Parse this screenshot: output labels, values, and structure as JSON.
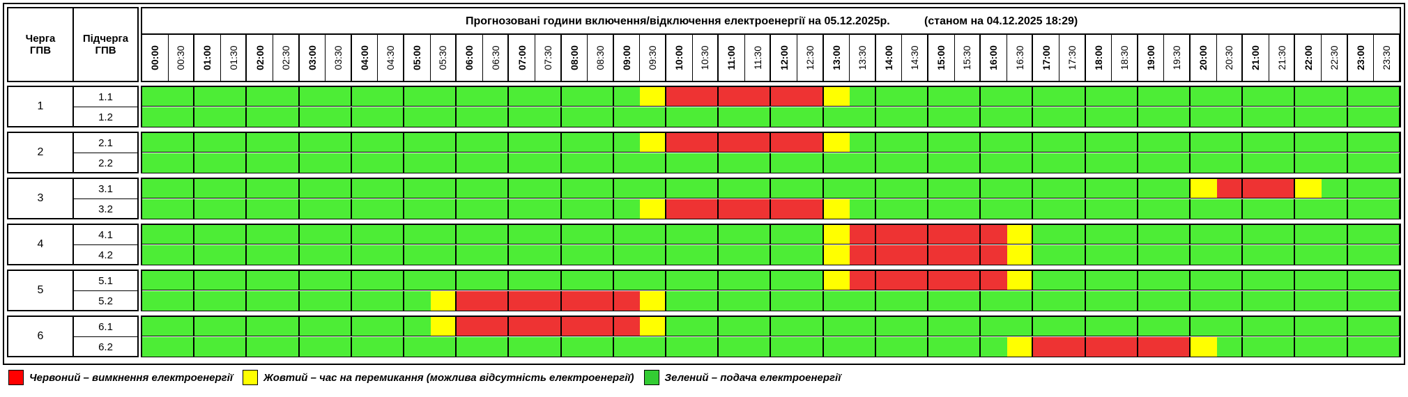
{
  "header": {
    "queue_col": "Черга\nГПВ",
    "subqueue_col": "Підчерга\nГПВ",
    "title": "Прогнозовані години включення/відключення електроенергії на 05.12.2025р.",
    "status": "(станом на 04.12.2025 18:29)"
  },
  "times": [
    "00:00",
    "00:30",
    "01:00",
    "01:30",
    "02:00",
    "02:30",
    "03:00",
    "03:30",
    "04:00",
    "04:30",
    "05:00",
    "05:30",
    "06:00",
    "06:30",
    "07:00",
    "07:30",
    "08:00",
    "08:30",
    "09:00",
    "09:30",
    "10:00",
    "10:30",
    "11:00",
    "11:30",
    "12:00",
    "12:30",
    "13:00",
    "13:30",
    "14:00",
    "14:30",
    "15:00",
    "15:30",
    "16:00",
    "16:30",
    "17:00",
    "17:30",
    "18:00",
    "18:30",
    "19:00",
    "19:30",
    "20:00",
    "20:30",
    "21:00",
    "21:30",
    "22:00",
    "22:30",
    "23:00",
    "23:30"
  ],
  "colors": {
    "R": "#ee3333",
    "Y": "#ffff00",
    "G": "#4ded36",
    "legend_green": "#33cc33",
    "legend_red": "#ff0000"
  },
  "queues": [
    {
      "label": "1",
      "subs": [
        {
          "label": "1.1",
          "slots": "GGGGGGGGGGGGGGGGGGGYRRRRRRYGGGGGGGGGGGGGGGGGGGGG"
        },
        {
          "label": "1.2",
          "slots": "GGGGGGGGGGGGGGGGGGGGGGGGGGGGGGGGGGGGGGGGGGGGGGGG"
        }
      ]
    },
    {
      "label": "2",
      "subs": [
        {
          "label": "2.1",
          "slots": "GGGGGGGGGGGGGGGGGGGYRRRRRRYGGGGGGGGGGGGGGGGGGGGG"
        },
        {
          "label": "2.2",
          "slots": "GGGGGGGGGGGGGGGGGGGGGGGGGGGGGGGGGGGGGGGGGGGGGGGG"
        }
      ]
    },
    {
      "label": "3",
      "subs": [
        {
          "label": "3.1",
          "slots": "GGGGGGGGGGGGGGGGGGGGGGGGGGGGGGGGGGGGGGGGYRRRYGGG"
        },
        {
          "label": "3.2",
          "slots": "GGGGGGGGGGGGGGGGGGGYRRRRRRYGGGGGGGGGGGGGGGGGGGGG"
        }
      ]
    },
    {
      "label": "4",
      "subs": [
        {
          "label": "4.1",
          "slots": "GGGGGGGGGGGGGGGGGGGGGGGGGGYRRRRRRYGGGGGGGGGGGGGG"
        },
        {
          "label": "4.2",
          "slots": "GGGGGGGGGGGGGGGGGGGGGGGGGGYRRRRRRYGGGGGGGGGGGGGG"
        }
      ]
    },
    {
      "label": "5",
      "subs": [
        {
          "label": "5.1",
          "slots": "GGGGGGGGGGGGGGGGGGGGGGGGGGYRRRRRRYGGGGGGGGGGGGGG"
        },
        {
          "label": "5.2",
          "slots": "GGGGGGGGGGGYRRRRRRRYGGGGGGGGGGGGGGGGGGGGGGGGGGGG"
        }
      ]
    },
    {
      "label": "6",
      "subs": [
        {
          "label": "6.1",
          "slots": "GGGGGGGGGGGYRRRRRRRYGGGGGGGGGGGGGGGGGGGGGGGGGGGG"
        },
        {
          "label": "6.2",
          "slots": "GGGGGGGGGGGGGGGGGGGGGGGGGGGGGGGGGYRRRRRRYGGGGGGG"
        }
      ]
    }
  ],
  "legend": {
    "red": "Червоний – вимкнення електроенергії",
    "yellow": "Жовтий – час на перемикання (можлива відсутність електроенергії)",
    "green": "Зелений – подача електроенергії"
  }
}
